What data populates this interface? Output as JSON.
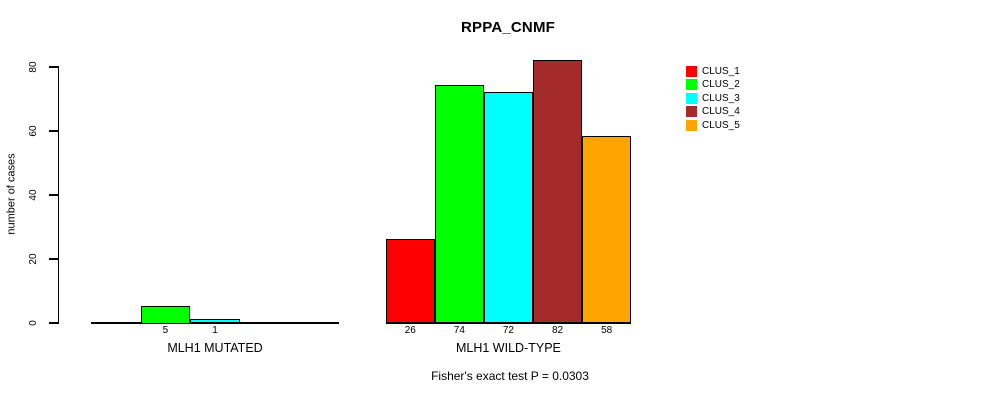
{
  "chart_data": {
    "type": "bar",
    "title": "RPPA_CNMF",
    "ylabel": "number of cases",
    "xlabel": "",
    "ylim": [
      0,
      80
    ],
    "yticks": [
      0,
      20,
      40,
      60,
      80
    ],
    "grid": false,
    "legend_position": "top-right",
    "categories": [
      "MLH1 MUTATED",
      "MLH1 WILD-TYPE"
    ],
    "series": [
      {
        "name": "CLUS_1",
        "color": "#FF0000",
        "values": [
          0,
          26
        ]
      },
      {
        "name": "CLUS_2",
        "color": "#00FF00",
        "values": [
          5,
          74
        ]
      },
      {
        "name": "CLUS_3",
        "color": "#00FFFF",
        "values": [
          1,
          72
        ]
      },
      {
        "name": "CLUS_4",
        "color": "#A52A2A",
        "values": [
          0,
          82
        ]
      },
      {
        "name": "CLUS_5",
        "color": "#FFA500",
        "values": [
          0,
          58
        ]
      }
    ],
    "bar_value_labels_visible": [
      "5",
      "1",
      "26",
      "74",
      "72",
      "82",
      "58"
    ],
    "annotation": "Fisher's exact test P = 0.0303"
  }
}
